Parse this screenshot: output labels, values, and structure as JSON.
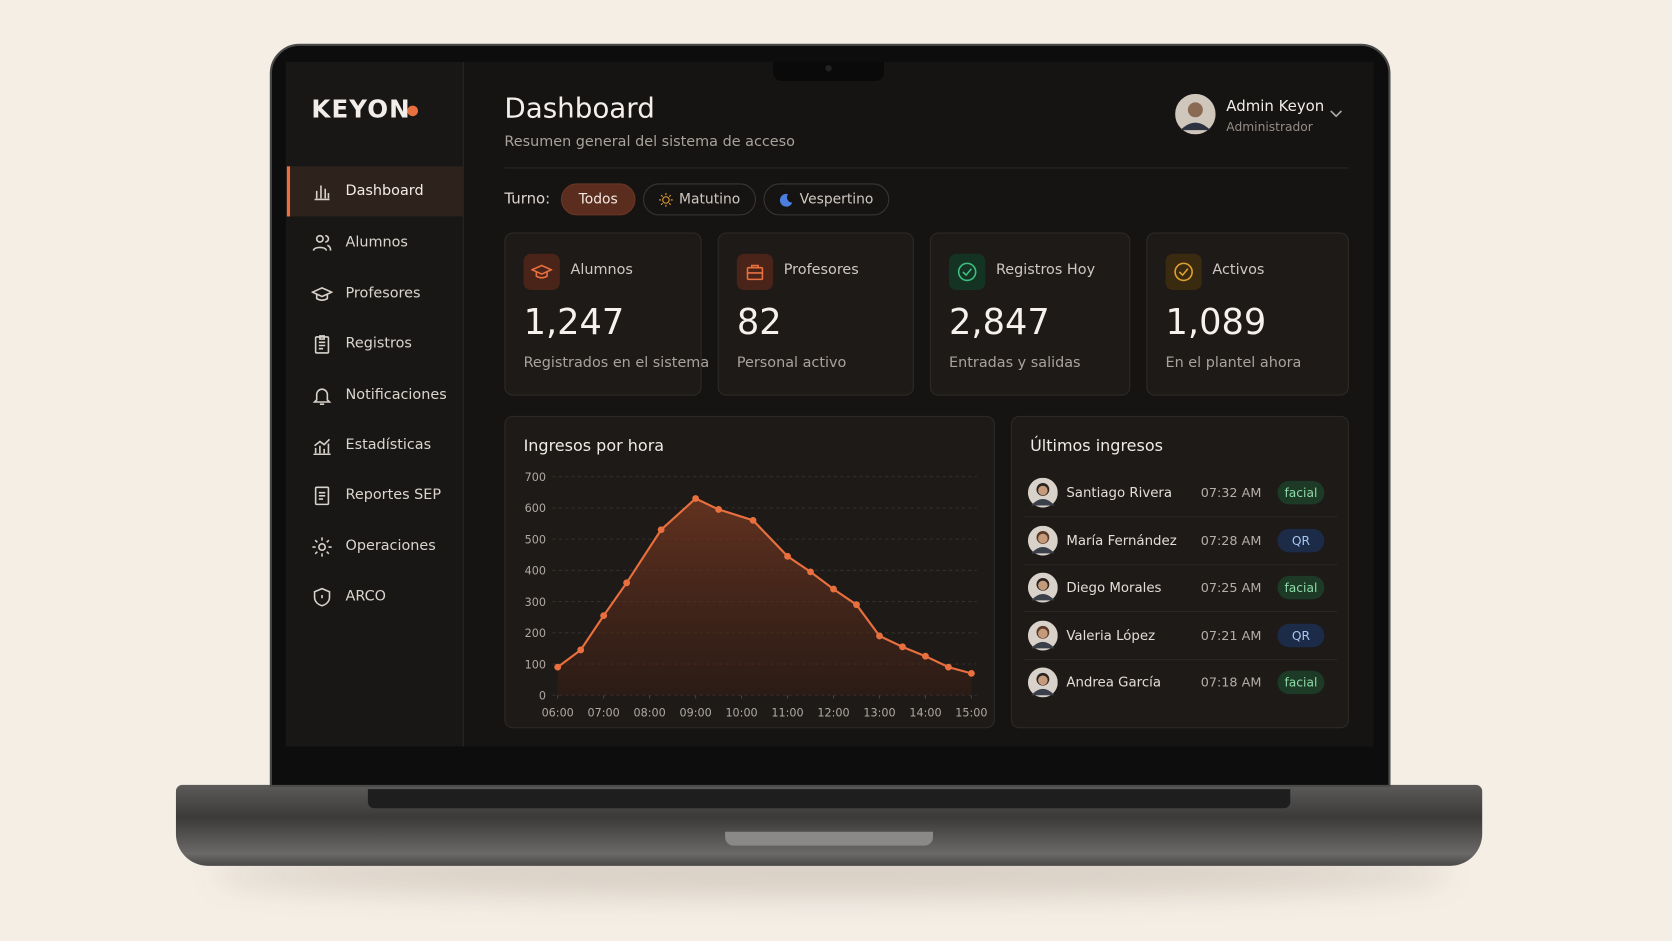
{
  "brand": "KEYON",
  "sidebar": {
    "items": [
      "Dashboard",
      "Alumnos",
      "Profesores",
      "Registros",
      "Notificaciones",
      "Estadísticas",
      "Reportes SEP",
      "Operaciones",
      "ARCO"
    ]
  },
  "header": {
    "title": "Dashboard",
    "subtitle": "Resumen general del sistema de acceso"
  },
  "user": {
    "name": "Admin Keyon",
    "role": "Administrador"
  },
  "filters": {
    "label": "Turno:",
    "options": [
      "Todos",
      "Matutino",
      "Vespertino"
    ]
  },
  "stats": [
    {
      "label": "Alumnos",
      "value": "1,247",
      "note": "Registrados en el sistema"
    },
    {
      "label": "Profesores",
      "value": "82",
      "note": "Personal activo"
    },
    {
      "label": "Registros Hoy",
      "value": "2,847",
      "note": "Entradas y salidas"
    },
    {
      "label": "Activos",
      "value": "1,089",
      "note": "En el plantel ahora"
    }
  ],
  "chart_data": {
    "type": "line",
    "title": "Ingresos por hora",
    "x": [
      6,
      6.5,
      7,
      7.5,
      8.25,
      9,
      9.5,
      10.25,
      11,
      11.5,
      12,
      12.5,
      13,
      13.5,
      14,
      14.5,
      15
    ],
    "values": [
      90,
      145,
      255,
      360,
      530,
      630,
      595,
      560,
      445,
      395,
      340,
      290,
      190,
      155,
      125,
      90,
      70
    ],
    "color": "#e8703f",
    "grid": true,
    "xlim": [
      6,
      15
    ],
    "xticks": [
      {
        "value": 6,
        "label": "06:00"
      },
      {
        "value": 7,
        "label": "07:00"
      },
      {
        "value": 8,
        "label": "08:00"
      },
      {
        "value": 9,
        "label": "09:00"
      },
      {
        "value": 10,
        "label": "10:00"
      },
      {
        "value": 11,
        "label": "11:00"
      },
      {
        "value": 12,
        "label": "12:00"
      },
      {
        "value": 13,
        "label": "13:00"
      },
      {
        "value": 14,
        "label": "14:00"
      },
      {
        "value": 15,
        "label": "15:00"
      }
    ],
    "ylim": [
      0,
      700
    ],
    "yticks": [
      0,
      100,
      200,
      300,
      400,
      500,
      600,
      700
    ]
  },
  "recent": {
    "title": "Últimos ingresos",
    "rows": [
      [
        "Santiago Rivera",
        "07:32 AM",
        "facial"
      ],
      [
        "María Fernández",
        "07:28 AM",
        "QR"
      ],
      [
        "Diego Morales",
        "07:25 AM",
        "facial"
      ],
      [
        "Valeria López",
        "07:21 AM",
        "QR"
      ],
      [
        "Andrea García",
        "07:18 AM",
        "facial"
      ]
    ]
  }
}
